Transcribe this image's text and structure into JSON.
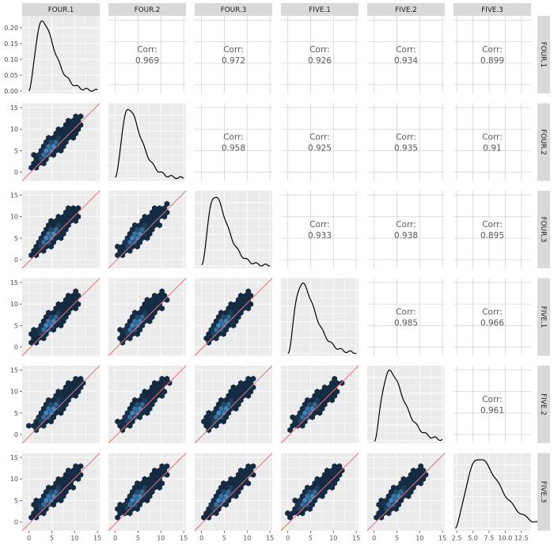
{
  "chart_data": {
    "type": "scatter-matrix",
    "variables": [
      "FOUR.1",
      "FOUR.2",
      "FOUR.3",
      "FIVE.1",
      "FIVE.2",
      "FIVE.3"
    ],
    "x_ticks": [
      0,
      5,
      10,
      15
    ],
    "x_ticks_last": [
      2.5,
      5.0,
      7.5,
      10.0,
      12.5
    ],
    "x_tick_labels_last": [
      "2.5",
      "5.0",
      "7.5",
      "10.0",
      "12.5"
    ],
    "y_ticks": [
      0,
      5,
      10,
      15
    ],
    "density_y_ticks": [
      "0.20",
      "0.15",
      "0.10",
      "0.05",
      "0.00"
    ],
    "density_y_values": [
      0.2,
      0.15,
      0.1,
      0.05,
      0.0
    ],
    "corr_label": "Corr:",
    "correlations": [
      {
        "row": "FOUR.2",
        "col": "FOUR.1",
        "value": "0.969"
      },
      {
        "row": "FOUR.3",
        "col": "FOUR.1",
        "value": "0.972"
      },
      {
        "row": "FIVE.1",
        "col": "FOUR.1",
        "value": "0.926"
      },
      {
        "row": "FIVE.2",
        "col": "FOUR.1",
        "value": "0.934"
      },
      {
        "row": "FIVE.3",
        "col": "FOUR.1",
        "value": "0.899"
      },
      {
        "row": "FOUR.3",
        "col": "FOUR.2",
        "value": "0.958"
      },
      {
        "row": "FIVE.1",
        "col": "FOUR.2",
        "value": "0.925"
      },
      {
        "row": "FIVE.2",
        "col": "FOUR.2",
        "value": "0.935"
      },
      {
        "row": "FIVE.3",
        "col": "FOUR.2",
        "value": "0.91"
      },
      {
        "row": "FIVE.1",
        "col": "FOUR.3",
        "value": "0.933"
      },
      {
        "row": "FIVE.2",
        "col": "FOUR.3",
        "value": "0.938"
      },
      {
        "row": "FIVE.3",
        "col": "FOUR.3",
        "value": "0.895"
      },
      {
        "row": "FIVE.2",
        "col": "FIVE.1",
        "value": "0.985"
      },
      {
        "row": "FIVE.3",
        "col": "FIVE.1",
        "value": "0.966"
      },
      {
        "row": "FIVE.3",
        "col": "FIVE.2",
        "value": "0.961"
      }
    ],
    "density_peak_x": [
      3.0,
      3.0,
      3.0,
      3.2,
      3.5,
      6.0
    ],
    "density_peak_y": 0.22,
    "xlim": [
      -1.5,
      15.5
    ],
    "xlim_last": [
      2.0,
      14.0
    ],
    "ylim": [
      -2.0,
      16.0
    ],
    "colors": {
      "panel": "#ebebeb",
      "strip": "#d9d9d9",
      "ref_line": "#e8737a",
      "hex_low": "#132b43",
      "hex_high": "#56b1f7"
    }
  }
}
